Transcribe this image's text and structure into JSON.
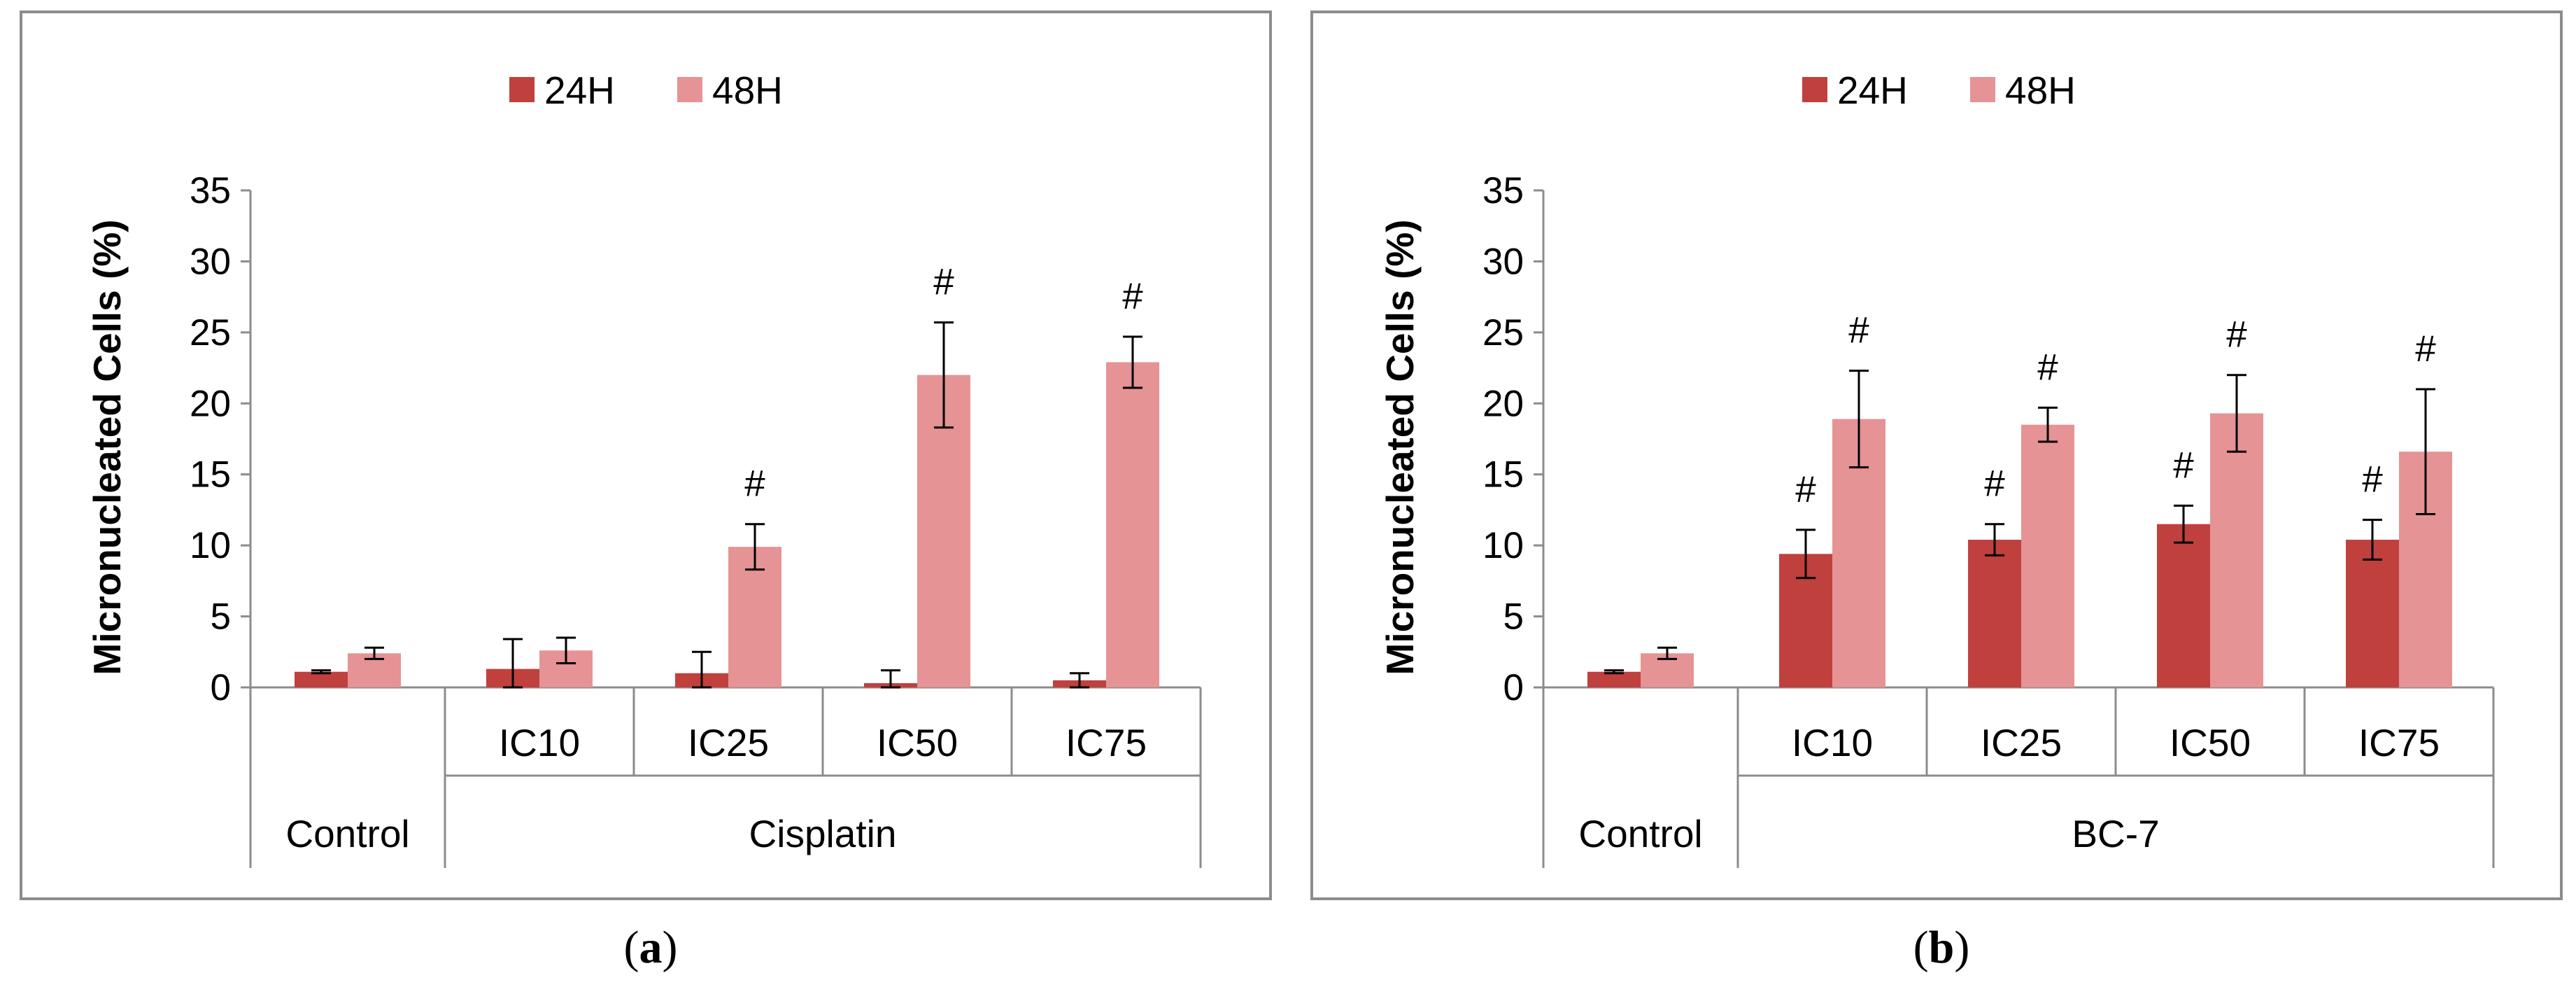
{
  "colors": {
    "h24": "#C0403E",
    "h48": "#E59395",
    "frame": "#8C8C8C",
    "axis": "#8C8C8C"
  },
  "chart_data": [
    {
      "type": "bar",
      "panel_label": "a",
      "ylabel": "Micronucleated Cells (%)",
      "ylim": [
        0,
        35
      ],
      "yticks": [
        "0",
        "5",
        "10",
        "15",
        "20",
        "25",
        "30",
        "35"
      ],
      "categories": [
        "",
        "IC10",
        "IC25",
        "IC50",
        "IC75"
      ],
      "groups": [
        {
          "label": "Control",
          "span": [
            0,
            0
          ]
        },
        {
          "label": "Cisplatin",
          "span": [
            1,
            4
          ]
        }
      ],
      "series": [
        {
          "name": "24H",
          "values": [
            1.1,
            1.3,
            1.0,
            0.3,
            0.5
          ],
          "errors": [
            0.1,
            2.1,
            1.5,
            0.9,
            0.5
          ],
          "marks": [
            "",
            "",
            "",
            "",
            ""
          ]
        },
        {
          "name": "48H",
          "values": [
            2.4,
            2.6,
            9.9,
            22.0,
            22.9
          ],
          "errors": [
            0.4,
            0.9,
            1.6,
            3.7,
            1.8
          ],
          "marks": [
            "",
            "",
            "#",
            "#",
            "#"
          ]
        }
      ]
    },
    {
      "type": "bar",
      "panel_label": "b",
      "ylabel": "Micronucleated Cells (%)",
      "ylim": [
        0,
        35
      ],
      "yticks": [
        "0",
        "5",
        "10",
        "15",
        "20",
        "25",
        "30",
        "35"
      ],
      "categories": [
        "",
        "IC10",
        "IC25",
        "IC50",
        "IC75"
      ],
      "groups": [
        {
          "label": "Control",
          "span": [
            0,
            0
          ]
        },
        {
          "label": "BC-7",
          "span": [
            1,
            4
          ]
        }
      ],
      "series": [
        {
          "name": "24H",
          "values": [
            1.1,
            9.4,
            10.4,
            11.5,
            10.4
          ],
          "errors": [
            0.1,
            1.7,
            1.1,
            1.3,
            1.4
          ],
          "marks": [
            "",
            "#",
            "#",
            "#",
            "#"
          ]
        },
        {
          "name": "48H",
          "values": [
            2.4,
            18.9,
            18.5,
            19.3,
            16.6
          ],
          "errors": [
            0.4,
            3.4,
            1.2,
            2.7,
            4.4
          ],
          "marks": [
            "",
            "#",
            "#",
            "#",
            "#"
          ]
        }
      ]
    }
  ]
}
